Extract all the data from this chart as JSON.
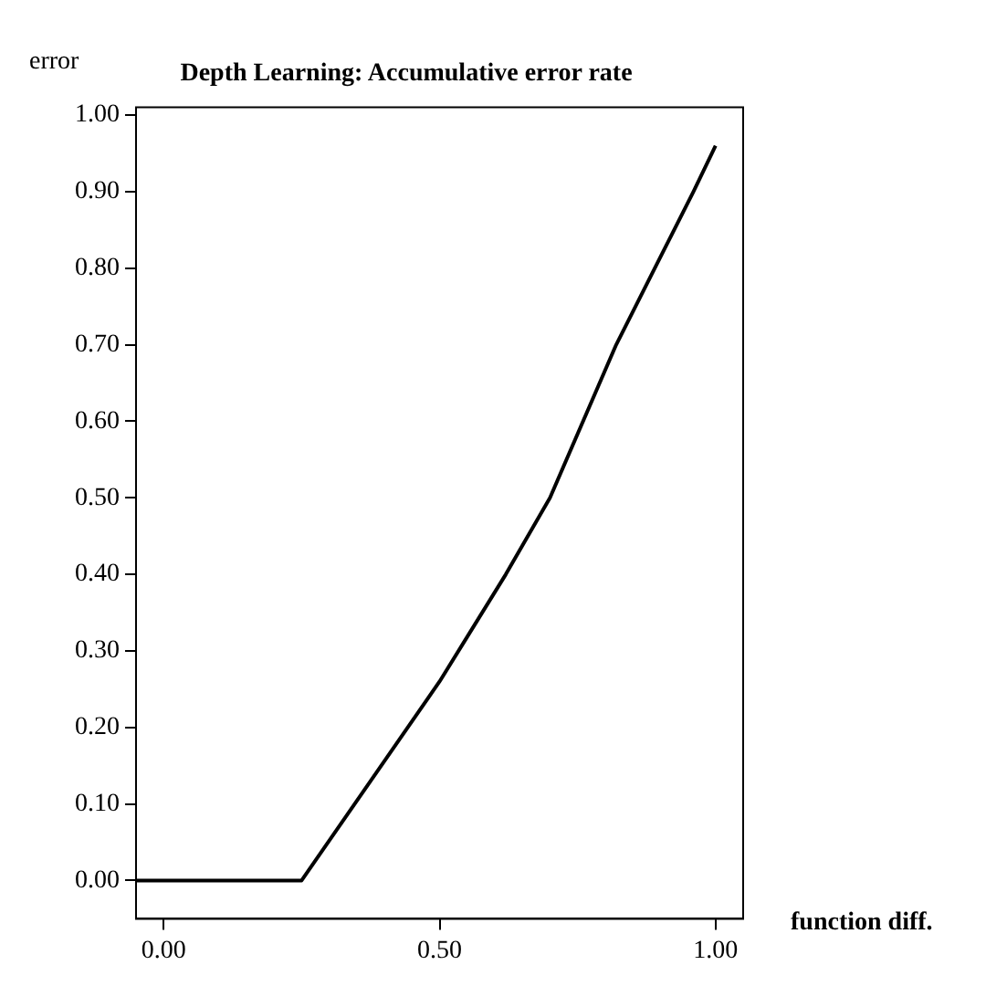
{
  "chart_data": {
    "type": "line",
    "title": "Depth Learning: Accumulative error rate",
    "xlabel": "function diff.",
    "ylabel": "error",
    "x": [
      -0.05,
      0.25,
      0.5,
      0.62,
      0.7,
      0.82,
      0.89,
      0.96,
      1.0
    ],
    "series": [
      {
        "color": "#000000",
        "values": [
          0,
          0,
          0.26,
          0.4,
          0.5,
          0.7,
          0.8,
          0.9,
          0.96
        ]
      }
    ],
    "xlim": [
      -0.05,
      1.05
    ],
    "ylim": [
      -0.05,
      1.01
    ],
    "xticks": [
      {
        "value": 0,
        "label": "0.00"
      },
      {
        "value": 0.5,
        "label": "0.50"
      },
      {
        "value": 1,
        "label": "1.00"
      }
    ],
    "yticks": [
      {
        "value": 0,
        "label": "0.00"
      },
      {
        "value": 0.1,
        "label": "0.10"
      },
      {
        "value": 0.2,
        "label": "0.20"
      },
      {
        "value": 0.3,
        "label": "0.30"
      },
      {
        "value": 0.4,
        "label": "0.40"
      },
      {
        "value": 0.5,
        "label": "0.50"
      },
      {
        "value": 0.6,
        "label": "0.60"
      },
      {
        "value": 0.7,
        "label": "0.70"
      },
      {
        "value": 0.8,
        "label": "0.80"
      },
      {
        "value": 0.9,
        "label": "0.90"
      },
      {
        "value": 1,
        "label": "1.00"
      }
    ],
    "grid": false,
    "legend": false,
    "marker": "none",
    "line_style": "solid"
  }
}
